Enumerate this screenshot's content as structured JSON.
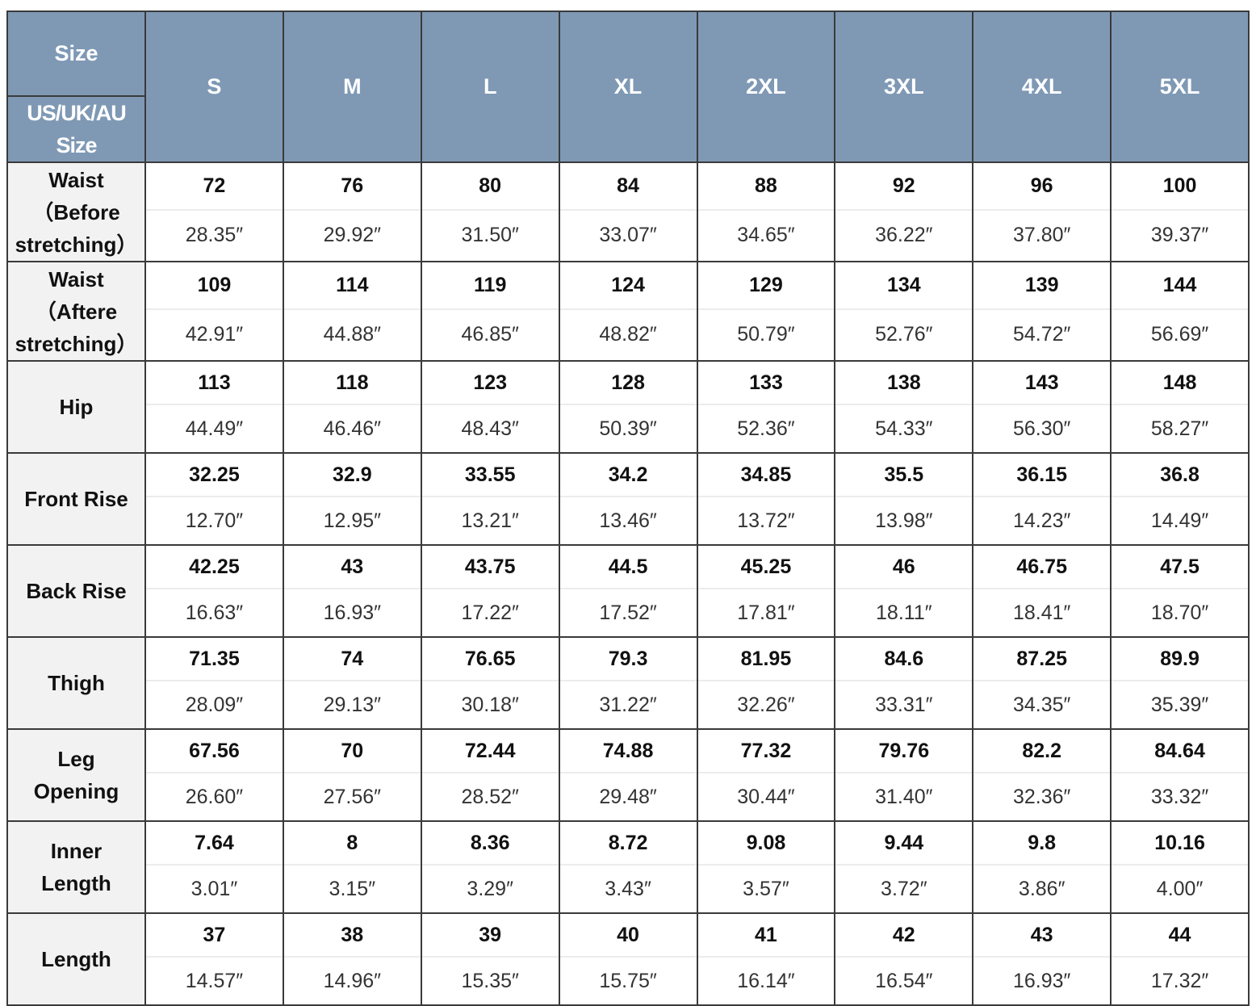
{
  "header": {
    "size_label": "Size",
    "region_label": "US/UK/AU Size",
    "sizes": [
      "S",
      "M",
      "L",
      "XL",
      "2XL",
      "3XL",
      "4XL",
      "5XL"
    ],
    "header_color": "#7f99b5"
  },
  "rows": [
    {
      "label": "Waist\n（Before\nstretching）",
      "cm": [
        "72",
        "76",
        "80",
        "84",
        "88",
        "92",
        "96",
        "100"
      ],
      "inch": [
        "28.35″",
        "29.92″",
        "31.50″",
        "33.07″",
        "34.65″",
        "36.22″",
        "37.80″",
        "39.37″"
      ]
    },
    {
      "label": "Waist\n（Aftere\nstretching）",
      "cm": [
        "109",
        "114",
        "119",
        "124",
        "129",
        "134",
        "139",
        "144"
      ],
      "inch": [
        "42.91″",
        "44.88″",
        "46.85″",
        "48.82″",
        "50.79″",
        "52.76″",
        "54.72″",
        "56.69″"
      ]
    },
    {
      "label": "Hip",
      "cm": [
        "113",
        "118",
        "123",
        "128",
        "133",
        "138",
        "143",
        "148"
      ],
      "inch": [
        "44.49″",
        "46.46″",
        "48.43″",
        "50.39″",
        "52.36″",
        "54.33″",
        "56.30″",
        "58.27″"
      ]
    },
    {
      "label": "Front Rise",
      "cm": [
        "32.25",
        "32.9",
        "33.55",
        "34.2",
        "34.85",
        "35.5",
        "36.15",
        "36.8"
      ],
      "inch": [
        "12.70″",
        "12.95″",
        "13.21″",
        "13.46″",
        "13.72″",
        "13.98″",
        "14.23″",
        "14.49″"
      ]
    },
    {
      "label": "Back Rise",
      "cm": [
        "42.25",
        "43",
        "43.75",
        "44.5",
        "45.25",
        "46",
        "46.75",
        "47.5"
      ],
      "inch": [
        "16.63″",
        "16.93″",
        "17.22″",
        "17.52″",
        "17.81″",
        "18.11″",
        "18.41″",
        "18.70″"
      ]
    },
    {
      "label": "Thigh",
      "cm": [
        "71.35",
        "74",
        "76.65",
        "79.3",
        "81.95",
        "84.6",
        "87.25",
        "89.9"
      ],
      "inch": [
        "28.09″",
        "29.13″",
        "30.18″",
        "31.22″",
        "32.26″",
        "33.31″",
        "34.35″",
        "35.39″"
      ]
    },
    {
      "label": "Leg\nOpening",
      "cm": [
        "67.56",
        "70",
        "72.44",
        "74.88",
        "77.32",
        "79.76",
        "82.2",
        "84.64"
      ],
      "inch": [
        "26.60″",
        "27.56″",
        "28.52″",
        "29.48″",
        "30.44″",
        "31.40″",
        "32.36″",
        "33.32″"
      ]
    },
    {
      "label": "Inner\nLength",
      "cm": [
        "7.64",
        "8",
        "8.36",
        "8.72",
        "9.08",
        "9.44",
        "9.8",
        "10.16"
      ],
      "inch": [
        "3.01″",
        "3.15″",
        "3.29″",
        "3.43″",
        "3.57″",
        "3.72″",
        "3.86″",
        "4.00″"
      ]
    },
    {
      "label": "Length",
      "cm": [
        "37",
        "38",
        "39",
        "40",
        "41",
        "42",
        "43",
        "44"
      ],
      "inch": [
        "14.57″",
        "14.96″",
        "15.35″",
        "15.75″",
        "16.14″",
        "16.54″",
        "16.93″",
        "17.32″"
      ]
    }
  ]
}
